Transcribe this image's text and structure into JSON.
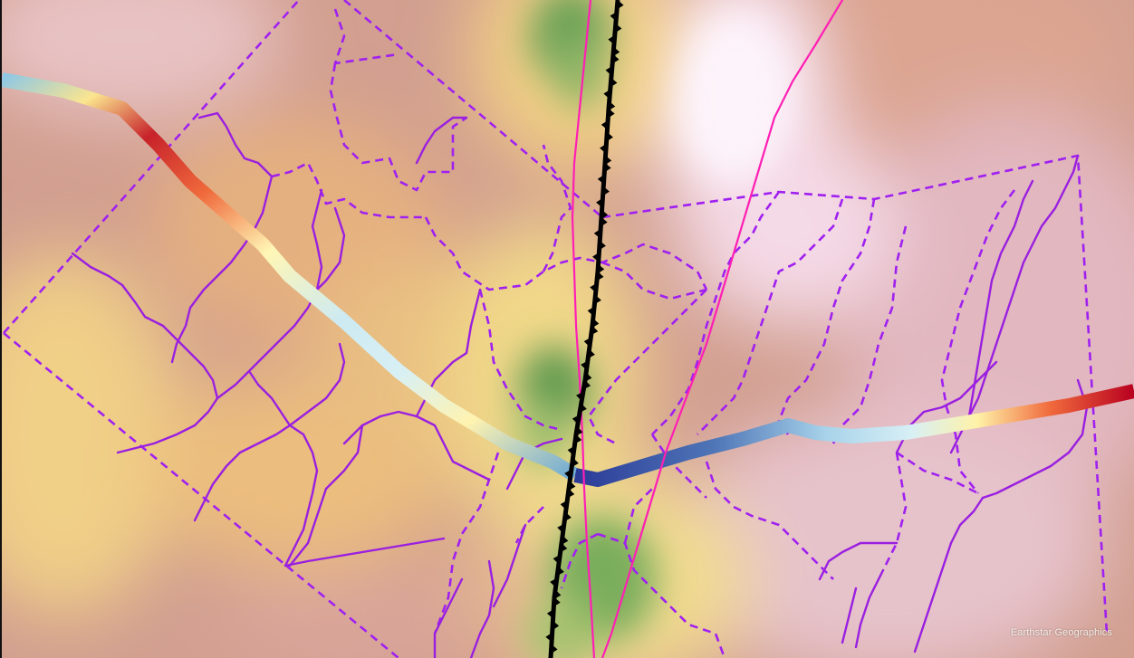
{
  "map": {
    "attribution": "Earthstar Geographics",
    "colors": {
      "basemap_low": "#d2a08f",
      "basemap_warm": "#e8b67c",
      "basemap_yellow": "#f1d98c",
      "basemap_green": "#5e9a50",
      "basemap_pink": "#efd9e3",
      "basemap_white": "#fbf3fb",
      "drainage_lines": "#a020f0",
      "boundary_dashed": "#a020f0",
      "trace_lines": "#ff1fb4",
      "fault_line": "#000000",
      "profile_low": "#2d3d9a",
      "profile_mid": "#bfe6f2",
      "profile_yellow": "#fff2a4",
      "profile_high": "#c00024"
    },
    "layers": [
      "hillshade-basemap",
      "drainage-network",
      "catchment-boundaries",
      "swath-profile-line",
      "thrust-fault",
      "channel-traces"
    ]
  }
}
